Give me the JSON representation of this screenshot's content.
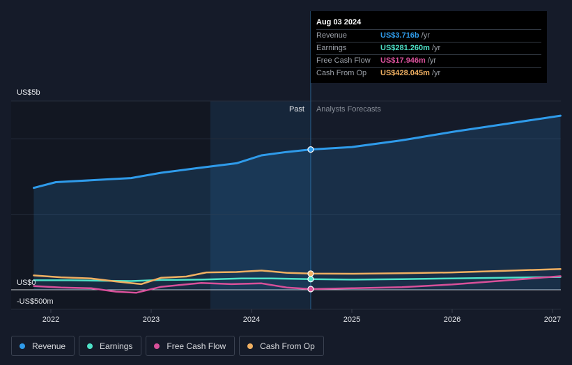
{
  "tooltip": {
    "date": "Aug 03 2024",
    "rows": [
      {
        "label": "Revenue",
        "value": "US$3.716b",
        "unit": "/yr",
        "color": "#2f9bea"
      },
      {
        "label": "Earnings",
        "value": "US$281.260m",
        "unit": "/yr",
        "color": "#4ee2c8"
      },
      {
        "label": "Free Cash Flow",
        "value": "US$17.946m",
        "unit": "/yr",
        "color": "#d8509a"
      },
      {
        "label": "Cash From Op",
        "value": "US$428.045m",
        "unit": "/yr",
        "color": "#f0b062"
      }
    ]
  },
  "legend": [
    {
      "label": "Revenue",
      "color": "#2f9bea"
    },
    {
      "label": "Earnings",
      "color": "#4ee2c8"
    },
    {
      "label": "Free Cash Flow",
      "color": "#d8509a"
    },
    {
      "label": "Cash From Op",
      "color": "#f0b062"
    }
  ],
  "chart_data": {
    "type": "line",
    "title": "",
    "xlabel": "",
    "ylabel": "",
    "ylim": [
      -500,
      5000
    ],
    "y_tick_labels": [
      {
        "value": 5000,
        "label": "US$5b"
      },
      {
        "value": 0,
        "label": "US$0"
      },
      {
        "value": -500,
        "label": "-US$500m"
      }
    ],
    "x_ticks": [
      {
        "value": 2022.0,
        "label": "2022"
      },
      {
        "value": 2023.0,
        "label": "2023"
      },
      {
        "value": 2024.0,
        "label": "2024"
      },
      {
        "value": 2025.0,
        "label": "2025"
      },
      {
        "value": 2026.0,
        "label": "2026"
      },
      {
        "value": 2027.0,
        "label": "2027"
      }
    ],
    "xlim": [
      2021.78,
      2027.08
    ],
    "past_label": "Past",
    "forecast_label": "Analysts Forecasts",
    "divider_x": 2024.59,
    "highlight_start_x": 2023.59,
    "units": "US$ millions",
    "series": [
      {
        "name": "Revenue",
        "color": "#2f9bea",
        "fill": true,
        "points": [
          [
            2021.83,
            2700
          ],
          [
            2022.05,
            2850
          ],
          [
            2022.4,
            2900
          ],
          [
            2022.8,
            2960
          ],
          [
            2023.1,
            3100
          ],
          [
            2023.45,
            3220
          ],
          [
            2023.85,
            3350
          ],
          [
            2024.1,
            3560
          ],
          [
            2024.35,
            3650
          ],
          [
            2024.59,
            3716
          ],
          [
            2025.0,
            3780
          ],
          [
            2025.5,
            3960
          ],
          [
            2026.0,
            4180
          ],
          [
            2026.5,
            4380
          ],
          [
            2027.08,
            4610
          ]
        ]
      },
      {
        "name": "Earnings",
        "color": "#4ee2c8",
        "fill": false,
        "points": [
          [
            2021.83,
            250
          ],
          [
            2022.2,
            250
          ],
          [
            2022.5,
            240
          ],
          [
            2022.8,
            230
          ],
          [
            2023.1,
            260
          ],
          [
            2023.5,
            270
          ],
          [
            2023.9,
            300
          ],
          [
            2024.2,
            300
          ],
          [
            2024.59,
            281
          ],
          [
            2025.0,
            270
          ],
          [
            2025.5,
            280
          ],
          [
            2026.0,
            300
          ],
          [
            2026.5,
            320
          ],
          [
            2027.08,
            340
          ]
        ]
      },
      {
        "name": "Free Cash Flow",
        "color": "#d8509a",
        "fill": false,
        "points": [
          [
            2021.83,
            100
          ],
          [
            2022.1,
            60
          ],
          [
            2022.4,
            40
          ],
          [
            2022.65,
            -50
          ],
          [
            2022.85,
            -80
          ],
          [
            2023.1,
            80
          ],
          [
            2023.5,
            180
          ],
          [
            2023.8,
            150
          ],
          [
            2024.1,
            170
          ],
          [
            2024.35,
            60
          ],
          [
            2024.59,
            18
          ],
          [
            2025.0,
            40
          ],
          [
            2025.5,
            70
          ],
          [
            2026.0,
            140
          ],
          [
            2026.5,
            240
          ],
          [
            2027.08,
            360
          ]
        ]
      },
      {
        "name": "Cash From Op",
        "color": "#f0b062",
        "fill": false,
        "points": [
          [
            2021.83,
            380
          ],
          [
            2022.1,
            330
          ],
          [
            2022.4,
            300
          ],
          [
            2022.65,
            220
          ],
          [
            2022.9,
            150
          ],
          [
            2023.1,
            320
          ],
          [
            2023.35,
            350
          ],
          [
            2023.55,
            460
          ],
          [
            2023.85,
            470
          ],
          [
            2024.1,
            510
          ],
          [
            2024.35,
            450
          ],
          [
            2024.59,
            428
          ],
          [
            2025.0,
            425
          ],
          [
            2025.5,
            440
          ],
          [
            2026.0,
            460
          ],
          [
            2026.5,
            500
          ],
          [
            2027.08,
            550
          ]
        ]
      }
    ],
    "markers_at_x": 2024.59,
    "marker_values": [
      3716,
      281,
      18,
      428
    ]
  }
}
